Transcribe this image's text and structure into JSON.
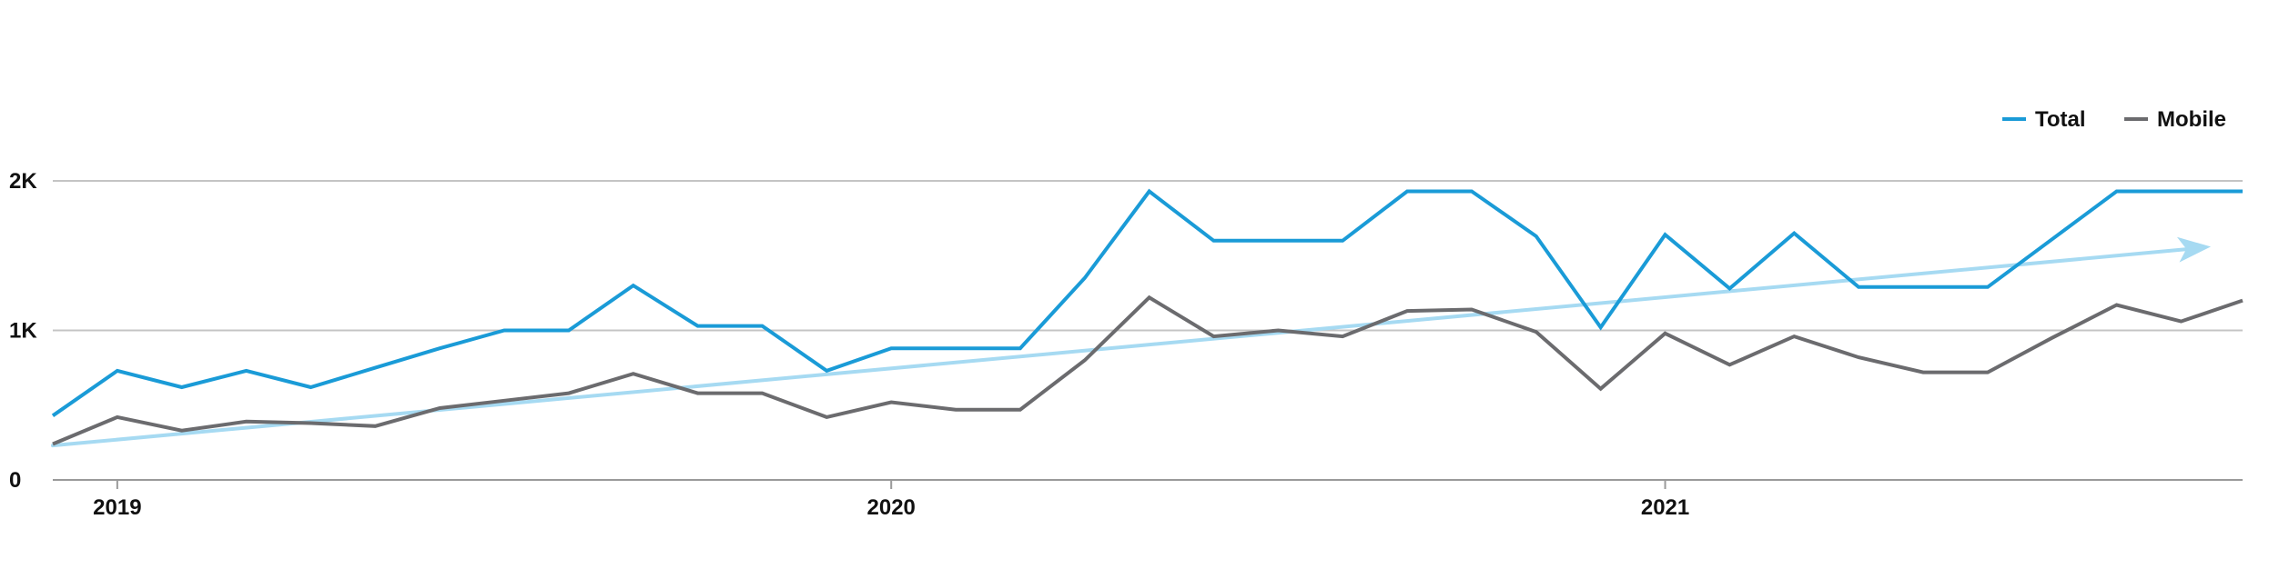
{
  "chart_data": {
    "type": "line",
    "x_axis": {
      "type": "time",
      "range": [
        "2018-12",
        "2021-09"
      ],
      "ticks": [
        {
          "value": "2019-01",
          "label": "2019"
        },
        {
          "value": "2020-01",
          "label": "2020"
        },
        {
          "value": "2021-01",
          "label": "2021"
        }
      ]
    },
    "y_axis": {
      "range": [
        0,
        2000
      ],
      "ticks": [
        {
          "value": 0,
          "label": "0"
        },
        {
          "value": 1000,
          "label": "1K"
        },
        {
          "value": 2000,
          "label": "2K"
        }
      ]
    },
    "grid": true,
    "legend": {
      "placement": "top-right"
    },
    "series": [
      {
        "name": "Total",
        "color": "#1a9bd7",
        "points": [
          [
            "2018-12",
            430
          ],
          [
            "2019-01",
            730
          ],
          [
            "2019-02",
            620
          ],
          [
            "2019-03",
            730
          ],
          [
            "2019-04",
            620
          ],
          [
            "2019-05",
            750
          ],
          [
            "2019-06",
            880
          ],
          [
            "2019-07",
            1000
          ],
          [
            "2019-08",
            1000
          ],
          [
            "2019-09",
            1300
          ],
          [
            "2019-10",
            1030
          ],
          [
            "2019-11",
            1030
          ],
          [
            "2019-12",
            730
          ],
          [
            "2020-01",
            880
          ],
          [
            "2020-02",
            880
          ],
          [
            "2020-03",
            880
          ],
          [
            "2020-04",
            1350
          ],
          [
            "2020-05",
            1930
          ],
          [
            "2020-06",
            1600
          ],
          [
            "2020-07",
            1600
          ],
          [
            "2020-08",
            1600
          ],
          [
            "2020-09",
            1930
          ],
          [
            "2020-10",
            1930
          ],
          [
            "2020-11",
            1630
          ],
          [
            "2020-12",
            1020
          ],
          [
            "2021-01",
            1640
          ],
          [
            "2021-02",
            1280
          ],
          [
            "2021-03",
            1650
          ],
          [
            "2021-04",
            1290
          ],
          [
            "2021-05",
            1290
          ],
          [
            "2021-06",
            1290
          ],
          [
            "2021-07",
            1610
          ],
          [
            "2021-08",
            1930
          ],
          [
            "2021-09",
            1930
          ],
          [
            "2021-09-30",
            1930
          ]
        ]
      },
      {
        "name": "Mobile",
        "color": "#6b6b6e",
        "points": [
          [
            "2018-12",
            240
          ],
          [
            "2019-01",
            420
          ],
          [
            "2019-02",
            330
          ],
          [
            "2019-03",
            390
          ],
          [
            "2019-04",
            380
          ],
          [
            "2019-05",
            360
          ],
          [
            "2019-06",
            480
          ],
          [
            "2019-07",
            530
          ],
          [
            "2019-08",
            580
          ],
          [
            "2019-09",
            710
          ],
          [
            "2019-10",
            580
          ],
          [
            "2019-11",
            580
          ],
          [
            "2019-12",
            420
          ],
          [
            "2020-01",
            520
          ],
          [
            "2020-02",
            470
          ],
          [
            "2020-03",
            470
          ],
          [
            "2020-04",
            800
          ],
          [
            "2020-05",
            1220
          ],
          [
            "2020-06",
            960
          ],
          [
            "2020-07",
            1000
          ],
          [
            "2020-08",
            960
          ],
          [
            "2020-09",
            1130
          ],
          [
            "2020-10",
            1140
          ],
          [
            "2020-11",
            990
          ],
          [
            "2020-12",
            610
          ],
          [
            "2021-01",
            980
          ],
          [
            "2021-02",
            770
          ],
          [
            "2021-03",
            960
          ],
          [
            "2021-04",
            820
          ],
          [
            "2021-05",
            720
          ],
          [
            "2021-06",
            720
          ],
          [
            "2021-07",
            950
          ],
          [
            "2021-08",
            1170
          ],
          [
            "2021-09",
            1060
          ],
          [
            "2021-09-30",
            1200
          ]
        ]
      }
    ],
    "trend_arrow": {
      "color": "#a6daf2",
      "from": [
        "2018-12",
        230
      ],
      "to": [
        "2021-09-15",
        1560
      ]
    }
  }
}
